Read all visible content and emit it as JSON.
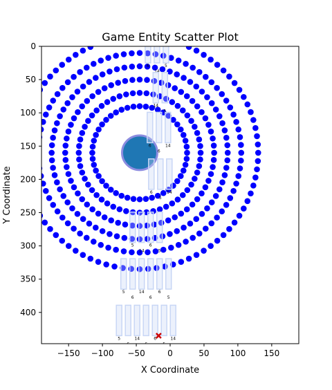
{
  "chart_data": {
    "type": "scatter",
    "title": "Game Entity Scatter Plot",
    "xlabel": "X Coordinate",
    "ylabel": "Y Coordinate",
    "xlim": [
      -190,
      190
    ],
    "ylim": [
      447,
      0
    ],
    "y_inverted": true,
    "grid": false,
    "x_ticks": [
      -150,
      -100,
      -50,
      0,
      50,
      100,
      150
    ],
    "y_ticks": [
      0,
      50,
      100,
      150,
      200,
      250,
      300,
      350,
      400
    ],
    "colors": {
      "rings": "#0000ff",
      "player": "#1f77b4",
      "player_outline": "#8c8ce0",
      "sprites": "#c8d6f5",
      "marker": "#cc0000",
      "axis": "#000000"
    },
    "series": [
      {
        "kind": "ring_points",
        "center": [
          -45,
          160
        ],
        "rings": [
          {
            "radius": 70,
            "points": 48
          },
          {
            "radius": 90,
            "points": 56
          },
          {
            "radius": 110,
            "points": 64
          },
          {
            "radius": 130,
            "points": 72
          },
          {
            "radius": 150,
            "points": 80
          },
          {
            "radius": 175,
            "points": 88
          }
        ]
      },
      {
        "kind": "circle",
        "center": [
          -45,
          160
        ],
        "radius": 26
      },
      {
        "kind": "sprite_boxes",
        "boxes": [
          {
            "x": -17,
            "y": 0,
            "labels": [
              "6",
              "14",
              "5"
            ]
          },
          {
            "x": -12,
            "y": 60,
            "labels": [
              "14",
              "5"
            ]
          },
          {
            "x": -14,
            "y": 120,
            "labels": [
              "6",
              "6",
              "14"
            ]
          },
          {
            "x": -12,
            "y": 190,
            "labels": [
              "6",
              "5",
              "14"
            ]
          },
          {
            "x": -33,
            "y": 270,
            "labels": [
              "5",
              "14",
              "6",
              "5"
            ]
          },
          {
            "x": -33,
            "y": 340,
            "labels": [
              "5",
              "6",
              "14",
              "6",
              "6",
              "5"
            ]
          },
          {
            "x": -33,
            "y": 410,
            "labels": [
              "5",
              "6",
              "14",
              "6",
              "6",
              "5",
              "14"
            ]
          }
        ]
      },
      {
        "kind": "x_marker",
        "x": -17,
        "y": 435
      }
    ]
  }
}
